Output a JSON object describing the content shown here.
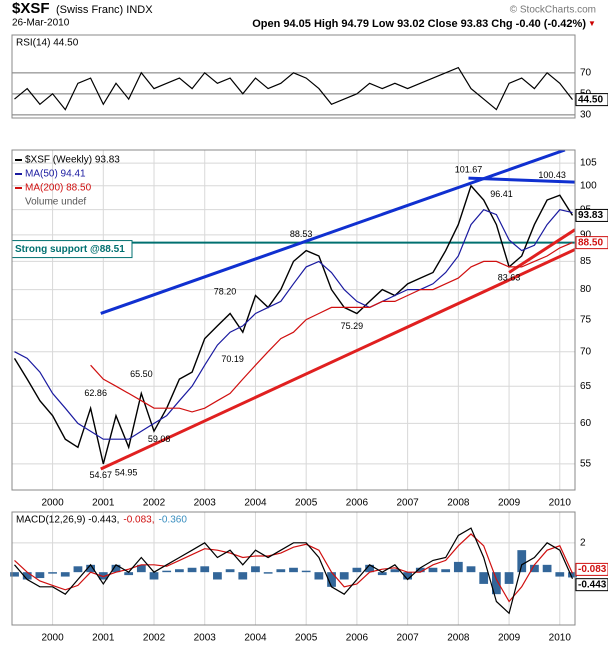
{
  "header": {
    "symbol": "$XSF",
    "name": "(Swiss Franc) INDX",
    "date": "26-Mar-2010",
    "source": "© StockCharts.com",
    "quote": "Open 94.05  High 94.79  Low 93.02  Close 93.83  Chg -0.40 (-0.42%)",
    "arrow": "▼"
  },
  "chart_data": [
    {
      "type": "line",
      "title": "RSI(14) 44.50",
      "x": [
        1999.25,
        1999.5,
        1999.75,
        2000.0,
        2000.25,
        2000.5,
        2000.75,
        2001.0,
        2001.25,
        2001.5,
        2001.75,
        2002.0,
        2002.25,
        2002.5,
        2002.75,
        2003.0,
        2003.25,
        2003.5,
        2003.75,
        2004.0,
        2004.25,
        2004.5,
        2004.75,
        2005.0,
        2005.25,
        2005.5,
        2005.75,
        2006.0,
        2006.25,
        2006.5,
        2006.75,
        2007.0,
        2007.25,
        2007.5,
        2007.75,
        2008.0,
        2008.25,
        2008.5,
        2008.75,
        2009.0,
        2009.25,
        2009.5,
        2009.75,
        2010.0,
        2010.25
      ],
      "series": [
        {
          "color": "#000000",
          "values": [
            45,
            55,
            40,
            50,
            35,
            60,
            65,
            40,
            60,
            45,
            70,
            55,
            60,
            65,
            55,
            70,
            60,
            65,
            50,
            65,
            55,
            60,
            70,
            65,
            55,
            40,
            45,
            50,
            60,
            55,
            60,
            55,
            60,
            65,
            70,
            75,
            55,
            45,
            35,
            60,
            65,
            55,
            70,
            60,
            44.5
          ]
        }
      ],
      "xlim": [
        1999.2,
        2010.3
      ],
      "ylim": [
        27,
        106
      ],
      "yticks": [
        30,
        50,
        70
      ],
      "last_labels": [
        {
          "value": 44.5,
          "label": "44.50",
          "color": "#000000"
        }
      ]
    },
    {
      "type": "line",
      "log_scale": true,
      "grid": true,
      "x": [
        1999.25,
        1999.5,
        1999.75,
        2000.0,
        2000.25,
        2000.5,
        2000.75,
        2001.0,
        2001.25,
        2001.5,
        2001.75,
        2002.0,
        2002.25,
        2002.5,
        2002.75,
        2003.0,
        2003.25,
        2003.5,
        2003.75,
        2004.0,
        2004.25,
        2004.5,
        2004.75,
        2005.0,
        2005.25,
        2005.5,
        2005.75,
        2006.0,
        2006.25,
        2006.5,
        2006.75,
        2007.0,
        2007.25,
        2007.5,
        2007.75,
        2008.0,
        2008.25,
        2008.5,
        2008.75,
        2009.0,
        2009.25,
        2009.5,
        2009.75,
        2010.0,
        2010.25
      ],
      "series": [
        {
          "name": "$XSF (Weekly) 93.83",
          "color": "#000000",
          "values": [
            69,
            66,
            63,
            61,
            58,
            57,
            62,
            55,
            61,
            57,
            64,
            59,
            62,
            66,
            67,
            72,
            74,
            76,
            73,
            79,
            77,
            80,
            85,
            87,
            86,
            80,
            77,
            76,
            78,
            80,
            79,
            81,
            82,
            83,
            87,
            92,
            100,
            97,
            92,
            84,
            86,
            92,
            97,
            98,
            93.83
          ]
        },
        {
          "name": "MA(50) 94.41",
          "color": "#1a1aa0",
          "values": [
            70,
            69,
            67,
            64,
            62,
            60,
            59,
            58,
            58,
            58,
            59,
            60,
            61,
            63,
            65,
            68,
            71,
            73,
            74,
            76,
            77,
            78,
            81,
            84,
            85,
            83,
            80,
            78,
            77,
            78,
            79,
            80,
            80,
            81,
            83,
            86,
            92,
            95,
            94,
            89,
            87,
            88,
            92,
            95,
            94.41
          ]
        },
        {
          "name": "MA(200) 88.50",
          "color": "#d01010",
          "values": [
            null,
            null,
            null,
            null,
            null,
            null,
            68,
            66,
            65,
            64,
            63,
            62,
            62,
            62,
            61.5,
            62,
            63,
            64,
            66,
            68,
            70,
            72,
            73,
            75,
            76,
            77,
            77,
            77,
            77,
            78,
            78,
            79,
            80,
            80,
            81,
            82,
            84,
            85,
            85,
            84,
            84,
            85,
            86,
            87.5,
            88.5
          ]
        }
      ],
      "legend_extra": "Volume undef",
      "xlim": [
        1999.2,
        2010.3
      ],
      "ylim": [
        52,
        108
      ],
      "yticks": [
        55,
        60,
        65,
        70,
        75,
        80,
        85,
        90,
        95,
        100,
        105
      ],
      "xticks": [
        2000,
        2001,
        2002,
        2003,
        2004,
        2005,
        2006,
        2007,
        2008,
        2009,
        2010
      ],
      "annotations": [
        {
          "x": 2000.95,
          "value": 54.67,
          "label": "54.67"
        },
        {
          "x": 2000.85,
          "value": 62.86,
          "label": "62.86"
        },
        {
          "x": 2001.45,
          "value": 54.95,
          "label": "54.95"
        },
        {
          "x": 2001.75,
          "value": 65.5,
          "label": "65.50"
        },
        {
          "x": 2002.1,
          "value": 59.08,
          "label": "59.08"
        },
        {
          "x": 2003.4,
          "value": 78.2,
          "label": "78.20"
        },
        {
          "x": 2003.55,
          "value": 70.19,
          "label": "70.19"
        },
        {
          "x": 2004.9,
          "value": 88.53,
          "label": "88.53"
        },
        {
          "x": 2005.9,
          "value": 75.29,
          "label": "75.29"
        },
        {
          "x": 2008.2,
          "value": 101.67,
          "label": "101.67"
        },
        {
          "x": 2008.85,
          "value": 96.41,
          "label": "96.41"
        },
        {
          "x": 2009.0,
          "value": 83.63,
          "label": "83.63"
        },
        {
          "x": 2009.85,
          "value": 100.43,
          "label": "100.43"
        }
      ],
      "support": {
        "value": 88.51,
        "label": "Strong support @88.51",
        "color": "#007070"
      },
      "trendlines": [
        {
          "color": "#1030d0",
          "x": [
            2000.95,
            2010.1
          ],
          "values": [
            76,
            108
          ]
        },
        {
          "color": "#1030d0",
          "x": [
            2008.2,
            2010.3
          ],
          "values": [
            101.67,
            100.8
          ]
        },
        {
          "color": "#e02020",
          "x": [
            2000.95,
            2010.3
          ],
          "values": [
            54.4,
            87.2
          ]
        },
        {
          "color": "#e02020",
          "x": [
            2009.0,
            2010.3
          ],
          "values": [
            83.0,
            91.0
          ]
        }
      ],
      "last_labels": [
        {
          "value": 93.83,
          "label": "93.83",
          "color": "#000000"
        },
        {
          "value": 88.5,
          "label": "88.50",
          "color": "#d01010"
        }
      ]
    },
    {
      "type": "line",
      "legend_parts": [
        {
          "text": "MACD(12,26,9) -0.443,",
          "color": "#000000"
        },
        {
          "text": "-0.083,",
          "color": "#d01010"
        },
        {
          "text": "-0.360",
          "color": "#3a8fc0"
        }
      ],
      "x": [
        1999.25,
        1999.5,
        1999.75,
        2000.0,
        2000.25,
        2000.5,
        2000.75,
        2001.0,
        2001.25,
        2001.5,
        2001.75,
        2002.0,
        2002.25,
        2002.5,
        2002.75,
        2003.0,
        2003.25,
        2003.5,
        2003.75,
        2004.0,
        2004.25,
        2004.5,
        2004.75,
        2005.0,
        2005.25,
        2005.5,
        2005.75,
        2006.0,
        2006.25,
        2006.5,
        2006.75,
        2007.0,
        2007.25,
        2007.5,
        2007.75,
        2008.0,
        2008.25,
        2008.5,
        2008.75,
        2009.0,
        2009.25,
        2009.5,
        2009.75,
        2010.0,
        2010.25
      ],
      "series": [
        {
          "kind": "bar",
          "color": "#336699",
          "values": [
            -0.3,
            -0.5,
            -0.4,
            -0.1,
            -0.3,
            0.4,
            0.5,
            -0.5,
            0.5,
            -0.2,
            0.5,
            -0.5,
            0.1,
            0.2,
            0.3,
            0.4,
            -0.5,
            0.2,
            -0.5,
            0.4,
            -0.1,
            0.2,
            0.3,
            0.1,
            -0.5,
            -1,
            -0.5,
            0.3,
            0.5,
            -0.2,
            0.2,
            -0.5,
            0.3,
            0.3,
            0.2,
            0.7,
            0.4,
            -0.8,
            -1.5,
            -0.8,
            1.5,
            0.5,
            0.5,
            -0.3,
            -0.36
          ]
        },
        {
          "color": "#d01010",
          "values": [
            0.8,
            0,
            -0.6,
            -0.9,
            -1.2,
            -0.9,
            0,
            -0.3,
            0,
            0.2,
            0.5,
            0.5,
            0.4,
            0.8,
            1.2,
            1.6,
            1.5,
            1.3,
            1,
            1.1,
            1.1,
            1.3,
            1.7,
            1.9,
            1.5,
            0,
            -1,
            -0.8,
            0,
            0.2,
            0.3,
            0,
            0,
            0.5,
            0.8,
            1.8,
            2.6,
            1.8,
            -0.5,
            -2,
            -1,
            0.5,
            1.5,
            1.8,
            -0.083
          ]
        },
        {
          "color": "#000000",
          "values": [
            0.5,
            -0.5,
            -1,
            -1,
            -1.5,
            -0.5,
            0.5,
            -0.8,
            0.5,
            0,
            1,
            0,
            0.5,
            1,
            1.5,
            2,
            1,
            1.5,
            0.5,
            1.5,
            1,
            1.5,
            2,
            2,
            1,
            -1,
            -1.5,
            -0.5,
            0.5,
            0,
            0.5,
            -0.5,
            0.3,
            0.8,
            1,
            2.5,
            3,
            1,
            -2,
            -2.8,
            0.5,
            1,
            2,
            1.5,
            -0.443
          ]
        }
      ],
      "xlim": [
        1999.2,
        2010.3
      ],
      "ylim": [
        -3.6,
        4.1
      ],
      "yticks": [
        2
      ],
      "xticks": [
        2000,
        2001,
        2002,
        2003,
        2004,
        2005,
        2006,
        2007,
        2008,
        2009,
        2010
      ],
      "last_labels": [
        {
          "value": -0.083,
          "label": "-0.083",
          "color": "#d01010"
        },
        {
          "value": -0.443,
          "label": "-0.443",
          "color": "#000000"
        }
      ]
    }
  ]
}
